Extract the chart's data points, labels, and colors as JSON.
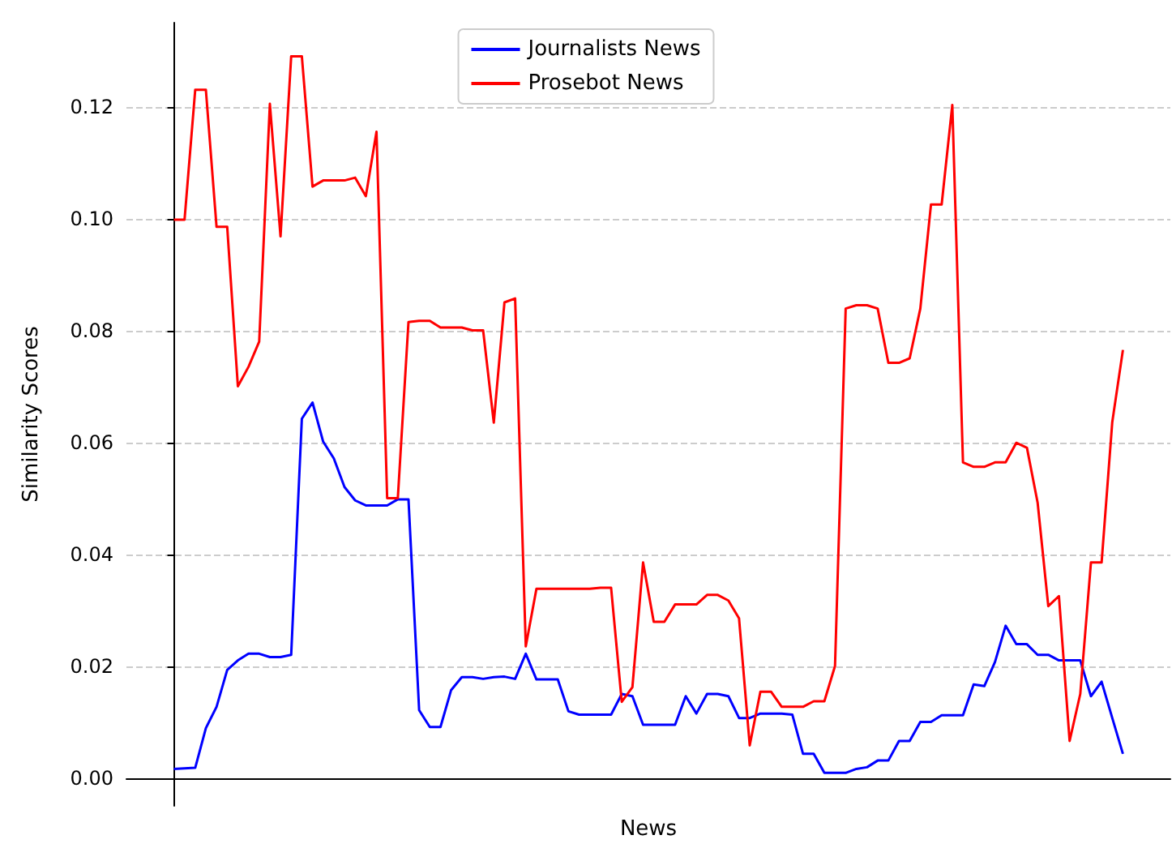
{
  "chart_data": {
    "type": "line",
    "xlabel": "News",
    "ylabel": "Similarity Scores",
    "categories": [
      null,
      null,
      null,
      null,
      null,
      null,
      null,
      null,
      null,
      null,
      null,
      null,
      null,
      null,
      null,
      null,
      null,
      null,
      null,
      null,
      null,
      null,
      null,
      null,
      null,
      null,
      null,
      null,
      null,
      null,
      null,
      null,
      null,
      null,
      null,
      null,
      null,
      null,
      null,
      null,
      null,
      null,
      null,
      null,
      null,
      null,
      null,
      null,
      null,
      null,
      null,
      null,
      null,
      null,
      null,
      null,
      null,
      null,
      null,
      null,
      null,
      null,
      null,
      null,
      null,
      null,
      null,
      null,
      null,
      null,
      null,
      null,
      null,
      null,
      null,
      null,
      null,
      null,
      null,
      null,
      null,
      null,
      null,
      null,
      null,
      null,
      null,
      null,
      null,
      null
    ],
    "series": [
      {
        "name": "Journalists News",
        "color": "#0000ff",
        "values": [
          0.0016,
          0.0017,
          0.0018,
          0.0089,
          0.0127,
          0.0193,
          0.021,
          0.0222,
          0.0222,
          0.0216,
          0.0216,
          0.022,
          0.0642,
          0.0671,
          0.0601,
          0.0571,
          0.052,
          0.0496,
          0.0487,
          0.0487,
          0.0487,
          0.0498,
          0.0498,
          0.0121,
          0.0091,
          0.0091,
          0.0157,
          0.018,
          0.018,
          0.0177,
          0.018,
          0.0181,
          0.0177,
          0.0222,
          0.0176,
          0.0176,
          0.0176,
          0.0119,
          0.0113,
          0.0113,
          0.0113,
          0.0113,
          0.015,
          0.0146,
          0.0095,
          0.0095,
          0.0095,
          0.0095,
          0.0146,
          0.0115,
          0.015,
          0.015,
          0.0146,
          0.0107,
          0.0107,
          0.0115,
          0.0115,
          0.0115,
          0.0113,
          0.0043,
          0.0043,
          0.0009,
          0.0009,
          0.0009,
          0.0016,
          0.0019,
          0.0031,
          0.0031,
          0.0066,
          0.0066,
          0.01,
          0.01,
          0.0112,
          0.0112,
          0.0112,
          0.0167,
          0.0164,
          0.0207,
          0.0272,
          0.0239,
          0.0239,
          0.022,
          0.022,
          0.021,
          0.021,
          0.021,
          0.0146,
          0.0172,
          0.0107,
          0.0043
        ]
      },
      {
        "name": "Prosebot News",
        "color": "#ff0000",
        "values": [
          0.0998,
          0.0998,
          0.123,
          0.123,
          0.0985,
          0.0985,
          0.07,
          0.0735,
          0.078,
          0.1205,
          0.0968,
          0.129,
          0.129,
          0.1057,
          0.1068,
          0.1068,
          0.1068,
          0.1073,
          0.104,
          0.1155,
          0.05,
          0.05,
          0.0815,
          0.0817,
          0.0817,
          0.0805,
          0.0805,
          0.0805,
          0.08,
          0.08,
          0.0635,
          0.085,
          0.0857,
          0.0235,
          0.0338,
          0.0338,
          0.0338,
          0.0338,
          0.0338,
          0.0338,
          0.034,
          0.034,
          0.0136,
          0.0162,
          0.0385,
          0.0279,
          0.0279,
          0.031,
          0.031,
          0.031,
          0.0327,
          0.0327,
          0.0317,
          0.0285,
          0.0058,
          0.0154,
          0.0154,
          0.0127,
          0.0127,
          0.0127,
          0.0137,
          0.0137,
          0.02,
          0.0839,
          0.0845,
          0.0845,
          0.0839,
          0.0742,
          0.0742,
          0.075,
          0.0839,
          0.1025,
          0.1025,
          0.1203,
          0.0564,
          0.0556,
          0.0556,
          0.0564,
          0.0564,
          0.0599,
          0.059,
          0.0492,
          0.0307,
          0.0325,
          0.0066,
          0.015,
          0.0385,
          0.0385,
          0.0636,
          0.0765
        ]
      }
    ],
    "ylim": [
      -0.005,
      0.135
    ],
    "yticks": [
      {
        "value": 0,
        "label": "0.00"
      },
      {
        "value": 0.02,
        "label": "0.02"
      },
      {
        "value": 0.04,
        "label": "0.04"
      },
      {
        "value": 0.06,
        "label": "0.06"
      },
      {
        "value": 0.08,
        "label": "0.08"
      },
      {
        "value": 0.1,
        "label": "0.10"
      },
      {
        "value": 0.12,
        "label": "0.12"
      }
    ],
    "grid": "y",
    "legend": "top",
    "marker": "none",
    "line_style": "solid"
  }
}
